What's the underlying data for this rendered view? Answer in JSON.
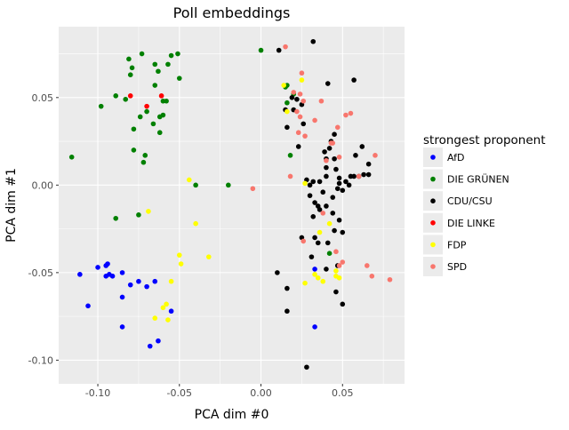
{
  "chart_data": {
    "type": "scatter",
    "title": "Poll embeddings",
    "xlabel": "PCA dim #0",
    "ylabel": "PCA dim #1",
    "xlim": [
      -0.124,
      0.088
    ],
    "ylim": [
      -0.1135,
      0.0905
    ],
    "xticks": [
      -0.1,
      -0.05,
      0.0,
      0.05
    ],
    "xtick_labels": [
      "-0.10",
      "-0.05",
      "0.00",
      "0.05"
    ],
    "yticks": [
      -0.1,
      -0.05,
      0.0,
      0.05
    ],
    "ytick_labels": [
      "-0.10",
      "-0.05",
      "0.00",
      "0.05"
    ],
    "grid": true,
    "legend": {
      "title": "strongest proponent",
      "placement": "right"
    },
    "series": [
      {
        "name": "AfD",
        "color": "#0000ff",
        "points": [
          [
            -0.111,
            -0.051
          ],
          [
            -0.106,
            -0.069
          ],
          [
            -0.1,
            -0.047
          ],
          [
            -0.095,
            -0.046
          ],
          [
            -0.094,
            -0.045
          ],
          [
            -0.095,
            -0.052
          ],
          [
            -0.093,
            -0.051
          ],
          [
            -0.091,
            -0.052
          ],
          [
            -0.085,
            -0.05
          ],
          [
            -0.085,
            -0.064
          ],
          [
            -0.085,
            -0.081
          ],
          [
            -0.08,
            -0.057
          ],
          [
            -0.075,
            -0.055
          ],
          [
            -0.07,
            -0.058
          ],
          [
            -0.068,
            -0.092
          ],
          [
            -0.065,
            -0.055
          ],
          [
            -0.063,
            -0.089
          ],
          [
            -0.055,
            -0.072
          ],
          [
            0.033,
            -0.048
          ],
          [
            0.033,
            -0.081
          ]
        ]
      },
      {
        "name": "DIE GRÜNEN",
        "color": "#008000",
        "points": [
          [
            -0.116,
            0.016
          ],
          [
            -0.098,
            0.045
          ],
          [
            -0.089,
            0.051
          ],
          [
            -0.083,
            0.049
          ],
          [
            -0.081,
            0.072
          ],
          [
            -0.08,
            0.063
          ],
          [
            -0.079,
            0.067
          ],
          [
            -0.078,
            0.032
          ],
          [
            -0.078,
            0.02
          ],
          [
            -0.074,
            0.039
          ],
          [
            -0.073,
            0.075
          ],
          [
            -0.072,
            0.013
          ],
          [
            -0.071,
            0.017
          ],
          [
            -0.07,
            0.042
          ],
          [
            -0.066,
            0.035
          ],
          [
            -0.065,
            0.069
          ],
          [
            -0.065,
            0.057
          ],
          [
            -0.063,
            0.065
          ],
          [
            -0.062,
            0.03
          ],
          [
            -0.062,
            0.039
          ],
          [
            -0.06,
            0.048
          ],
          [
            -0.06,
            0.04
          ],
          [
            -0.058,
            0.048
          ],
          [
            -0.057,
            0.069
          ],
          [
            -0.055,
            0.074
          ],
          [
            -0.051,
            0.075
          ],
          [
            -0.05,
            0.061
          ],
          [
            -0.089,
            -0.019
          ],
          [
            -0.075,
            -0.017
          ],
          [
            -0.04,
            0.0
          ],
          [
            -0.02,
            0.0
          ],
          [
            0.0,
            0.077
          ],
          [
            0.015,
            0.056
          ],
          [
            0.016,
            0.057
          ],
          [
            0.016,
            0.047
          ],
          [
            0.018,
            0.017
          ],
          [
            0.02,
            0.052
          ],
          [
            0.042,
            -0.039
          ]
        ]
      },
      {
        "name": "CDU/CSU",
        "color": "#000000",
        "points": [
          [
            0.032,
            0.082
          ],
          [
            0.011,
            0.077
          ],
          [
            0.015,
            0.043
          ],
          [
            0.016,
            0.033
          ],
          [
            0.019,
            0.05
          ],
          [
            0.02,
            0.043
          ],
          [
            0.022,
            0.049
          ],
          [
            0.023,
            0.022
          ],
          [
            0.025,
            0.046
          ],
          [
            0.026,
            0.035
          ],
          [
            0.028,
            0.003
          ],
          [
            0.032,
            0.002
          ],
          [
            0.03,
            0.0
          ],
          [
            0.03,
            -0.006
          ],
          [
            0.033,
            -0.01
          ],
          [
            0.032,
            -0.018
          ],
          [
            0.036,
            0.002
          ],
          [
            0.038,
            -0.004
          ],
          [
            0.036,
            -0.014
          ],
          [
            0.04,
            0.01
          ],
          [
            0.04,
            0.005
          ],
          [
            0.039,
            0.019
          ],
          [
            0.04,
            0.015
          ],
          [
            0.042,
            0.021
          ],
          [
            0.041,
            0.058
          ],
          [
            0.043,
            0.025
          ],
          [
            0.045,
            0.029
          ],
          [
            0.045,
            0.015
          ],
          [
            0.046,
            0.009
          ],
          [
            0.048,
            0.004
          ],
          [
            0.047,
            -0.002
          ],
          [
            0.048,
            0.001
          ],
          [
            0.05,
            -0.003
          ],
          [
            0.052,
            0.002
          ],
          [
            0.054,
            0.0
          ],
          [
            0.055,
            0.005
          ],
          [
            0.057,
            0.06
          ],
          [
            0.058,
            0.017
          ],
          [
            0.057,
            0.005
          ],
          [
            0.06,
            0.005
          ],
          [
            0.062,
            0.022
          ],
          [
            0.063,
            0.006
          ],
          [
            0.066,
            0.012
          ],
          [
            0.066,
            0.006
          ],
          [
            0.044,
            -0.007
          ],
          [
            0.04,
            -0.012
          ],
          [
            0.044,
            -0.016
          ],
          [
            0.048,
            -0.02
          ],
          [
            0.045,
            -0.026
          ],
          [
            0.05,
            -0.027
          ],
          [
            0.047,
            -0.046
          ],
          [
            0.04,
            -0.048
          ],
          [
            0.041,
            -0.033
          ],
          [
            0.035,
            -0.033
          ],
          [
            0.033,
            -0.03
          ],
          [
            0.031,
            -0.041
          ],
          [
            0.025,
            -0.03
          ],
          [
            0.035,
            -0.012
          ],
          [
            0.01,
            -0.05
          ],
          [
            0.016,
            -0.059
          ],
          [
            0.016,
            -0.072
          ],
          [
            0.046,
            -0.061
          ],
          [
            0.05,
            -0.068
          ],
          [
            0.028,
            -0.104
          ]
        ]
      },
      {
        "name": "DIE LINKE",
        "color": "#ff0000",
        "points": [
          [
            -0.08,
            0.051
          ],
          [
            -0.07,
            0.045
          ],
          [
            -0.061,
            0.051
          ]
        ]
      },
      {
        "name": "FDP",
        "color": "#ffff00",
        "points": [
          [
            -0.069,
            -0.015
          ],
          [
            -0.065,
            -0.076
          ],
          [
            -0.06,
            -0.07
          ],
          [
            -0.058,
            -0.068
          ],
          [
            -0.057,
            -0.077
          ],
          [
            -0.055,
            -0.055
          ],
          [
            -0.05,
            -0.04
          ],
          [
            -0.049,
            -0.045
          ],
          [
            -0.044,
            0.003
          ],
          [
            -0.04,
            -0.022
          ],
          [
            -0.032,
            -0.041
          ],
          [
            0.014,
            0.057
          ],
          [
            0.016,
            0.042
          ],
          [
            0.025,
            0.06
          ],
          [
            0.027,
            -0.056
          ],
          [
            0.033,
            -0.051
          ],
          [
            0.035,
            -0.053
          ],
          [
            0.038,
            -0.055
          ],
          [
            0.036,
            -0.027
          ],
          [
            0.042,
            -0.022
          ],
          [
            0.046,
            -0.052
          ],
          [
            0.048,
            -0.053
          ],
          [
            0.046,
            -0.049
          ],
          [
            0.027,
            0.001
          ]
        ]
      },
      {
        "name": "SPD",
        "color": "#f8766d",
        "points": [
          [
            0.015,
            0.079
          ],
          [
            0.025,
            0.064
          ],
          [
            0.02,
            0.053
          ],
          [
            0.024,
            0.052
          ],
          [
            0.026,
            0.048
          ],
          [
            0.022,
            0.042
          ],
          [
            0.023,
            0.03
          ],
          [
            0.024,
            0.039
          ],
          [
            0.027,
            0.028
          ],
          [
            0.033,
            0.037
          ],
          [
            0.037,
            0.048
          ],
          [
            0.04,
            0.014
          ],
          [
            0.043,
            0.024
          ],
          [
            0.044,
            0.024
          ],
          [
            0.048,
            0.016
          ],
          [
            0.047,
            0.033
          ],
          [
            0.052,
            0.04
          ],
          [
            0.055,
            0.041
          ],
          [
            0.06,
            0.005
          ],
          [
            0.07,
            0.017
          ],
          [
            0.018,
            0.005
          ],
          [
            -0.005,
            -0.002
          ],
          [
            0.026,
            -0.032
          ],
          [
            0.038,
            -0.016
          ],
          [
            0.046,
            -0.038
          ],
          [
            0.048,
            -0.046
          ],
          [
            0.05,
            -0.044
          ],
          [
            0.065,
            -0.046
          ],
          [
            0.068,
            -0.052
          ],
          [
            0.079,
            -0.054
          ]
        ]
      }
    ]
  }
}
